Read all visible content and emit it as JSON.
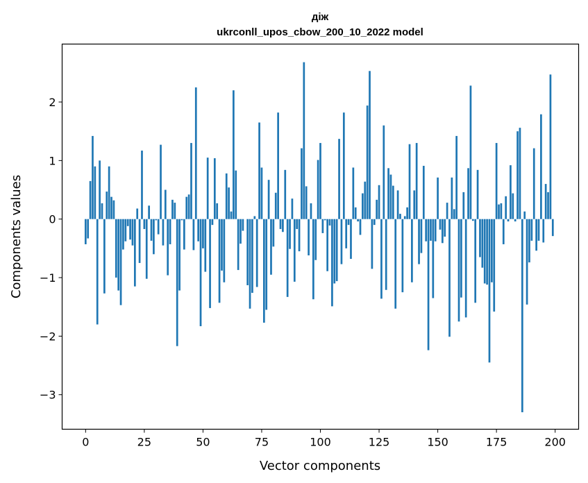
{
  "chart_data": {
    "type": "bar",
    "title_line1": "діж",
    "title_line2": "ukrconll_upos_cbow_200_10_2022 model",
    "xlabel": "Vector components",
    "ylabel": "Components values",
    "xlim": [
      -10,
      210
    ],
    "ylim": [
      -3.59,
      2.99
    ],
    "xticks": [
      0,
      25,
      50,
      75,
      100,
      125,
      150,
      175,
      200
    ],
    "xtick_labels": [
      "0",
      "25",
      "50",
      "75",
      "100",
      "125",
      "150",
      "175",
      "200"
    ],
    "yticks": [
      -3,
      -2,
      -1,
      0,
      1,
      2
    ],
    "ytick_labels": [
      "−3",
      "−2",
      "−1",
      "0",
      "1",
      "2"
    ],
    "grid": false,
    "bar_color": "#1f77b4",
    "values": [
      -0.43,
      -0.33,
      0.65,
      1.42,
      0.9,
      -1.8,
      1.0,
      0.27,
      -1.27,
      0.47,
      0.9,
      0.38,
      0.32,
      -1.0,
      -1.22,
      -1.47,
      -0.52,
      -0.38,
      -0.12,
      -0.35,
      -0.45,
      -1.15,
      0.18,
      -0.75,
      1.17,
      -0.17,
      -1.02,
      0.23,
      -0.37,
      -0.6,
      -0.02,
      -0.26,
      1.27,
      -0.45,
      0.5,
      -0.96,
      -0.43,
      0.33,
      0.28,
      -2.17,
      -1.22,
      -0.02,
      -0.52,
      0.38,
      0.42,
      1.3,
      -0.53,
      2.25,
      -0.38,
      -1.83,
      -0.5,
      -0.9,
      1.05,
      -1.52,
      -0.1,
      1.04,
      0.27,
      -1.43,
      -0.88,
      -1.08,
      0.78,
      0.54,
      0.13,
      2.2,
      0.83,
      -0.87,
      -0.42,
      -0.2,
      0.0,
      -1.13,
      -1.53,
      -1.26,
      0.05,
      -1.16,
      1.65,
      0.88,
      -1.77,
      -1.55,
      0.67,
      -0.95,
      -0.47,
      0.45,
      1.82,
      -0.17,
      -0.22,
      0.84,
      -1.33,
      -0.51,
      0.35,
      -1.07,
      -0.17,
      -0.55,
      1.21,
      2.68,
      0.56,
      -0.62,
      0.27,
      -1.37,
      -0.7,
      1.01,
      1.3,
      -0.24,
      -0.02,
      -0.89,
      -0.11,
      -1.49,
      -1.1,
      -1.06,
      1.37,
      -0.77,
      1.82,
      -0.5,
      -0.1,
      -0.68,
      0.88,
      0.2,
      -0.04,
      -0.27,
      0.44,
      0.64,
      1.94,
      2.53,
      -0.85,
      -0.1,
      0.33,
      0.58,
      -1.36,
      1.6,
      -1.21,
      0.87,
      0.76,
      0.57,
      -1.53,
      0.49,
      0.09,
      -1.25,
      0.05,
      0.2,
      1.28,
      -1.08,
      0.49,
      1.3,
      -0.77,
      -0.58,
      0.91,
      -0.38,
      -2.24,
      -0.37,
      -1.35,
      -0.38,
      0.71,
      -0.18,
      -0.41,
      -0.3,
      0.28,
      -2.01,
      0.71,
      0.17,
      1.42,
      -1.75,
      -1.34,
      0.46,
      -1.68,
      0.87,
      2.28,
      -0.03,
      -1.43,
      0.84,
      -0.65,
      -0.83,
      -1.1,
      -1.12,
      -2.45,
      -1.08,
      -1.58,
      1.3,
      0.25,
      0.27,
      -0.43,
      0.39,
      -0.04,
      0.92,
      0.44,
      -0.04,
      1.5,
      1.56,
      -3.3,
      0.13,
      -1.46,
      -0.74,
      -0.37,
      1.21,
      -0.54,
      -0.37,
      1.79,
      -0.4,
      0.6,
      0.46,
      2.47,
      -0.29
    ]
  }
}
